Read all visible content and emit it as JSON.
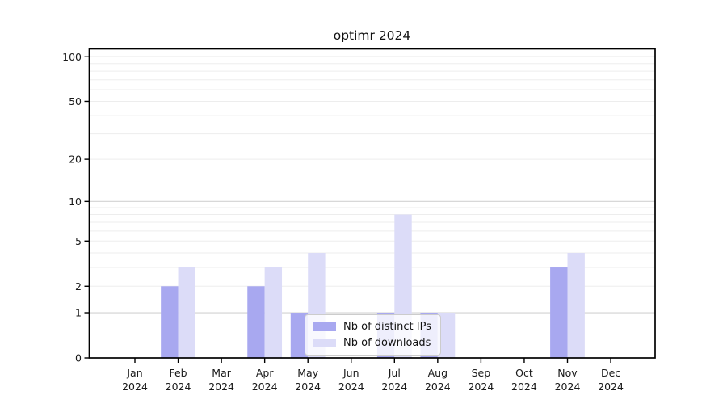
{
  "title": "optimr 2024",
  "chart_data": {
    "type": "bar",
    "title": "optimr 2024",
    "categories": [
      "Jan",
      "Feb",
      "Mar",
      "Apr",
      "May",
      "Jun",
      "Jul",
      "Aug",
      "Sep",
      "Oct",
      "Nov",
      "Dec"
    ],
    "category_year": "2024",
    "series": [
      {
        "name": "Nb of distinct IPs",
        "color": "#a8a8f0",
        "values": [
          0,
          2,
          0,
          2,
          1,
          0,
          1,
          1,
          0,
          0,
          3,
          0
        ]
      },
      {
        "name": "Nb of downloads",
        "color": "#dcdcf8",
        "values": [
          0,
          3,
          0,
          3,
          4,
          0,
          8,
          1,
          0,
          0,
          4,
          0
        ]
      }
    ],
    "xlabel": "",
    "ylabel": "",
    "yscale": "log1p",
    "ylim": [
      0,
      113
    ],
    "yticks": [
      0,
      1,
      2,
      5,
      10,
      20,
      50,
      100
    ],
    "minor_yticks": [
      3,
      4,
      6,
      7,
      8,
      9,
      30,
      40,
      60,
      70,
      80,
      90
    ],
    "grid": "horizontal",
    "legend_position": "inside lower-center"
  },
  "legend": {
    "items": [
      {
        "label": "Nb of distinct IPs",
        "color": "#a8a8f0"
      },
      {
        "label": "Nb of downloads",
        "color": "#dcdcf8"
      }
    ]
  },
  "colors": {
    "background": "#ffffff",
    "axis": "#000000",
    "text": "#1a1a1a",
    "grid_major": "#d2d2d2",
    "grid_minor": "#ededed"
  }
}
